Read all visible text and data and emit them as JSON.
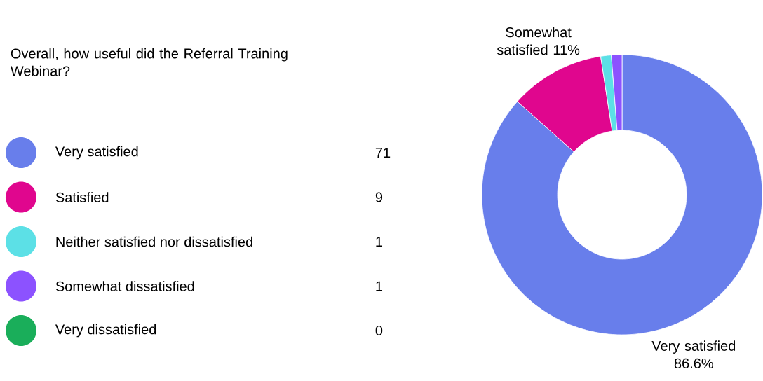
{
  "chart_data": {
    "type": "donut",
    "title": "Overall, how useful did the Referral Training Webinar?",
    "categories": [
      "Very satisfied",
      "Satisfied",
      "Neither satisfied nor dissatisfied",
      "Somewhat dissatisfied",
      "Very dissatisfied"
    ],
    "values": [
      71,
      9,
      1,
      1,
      0
    ],
    "colors": [
      "#687eeb",
      "#e0068e",
      "#5ce0e6",
      "#8c52ff",
      "#1aae5a"
    ],
    "value_labels": [
      "71",
      "9",
      "1",
      "1",
      "0"
    ],
    "annotations": [
      {
        "text": "Very satisfied 86.6%",
        "x": "Very satisfied"
      },
      {
        "text": "Somewhat satisfied 11%",
        "x": "Satisfied"
      }
    ],
    "legend": "left"
  }
}
